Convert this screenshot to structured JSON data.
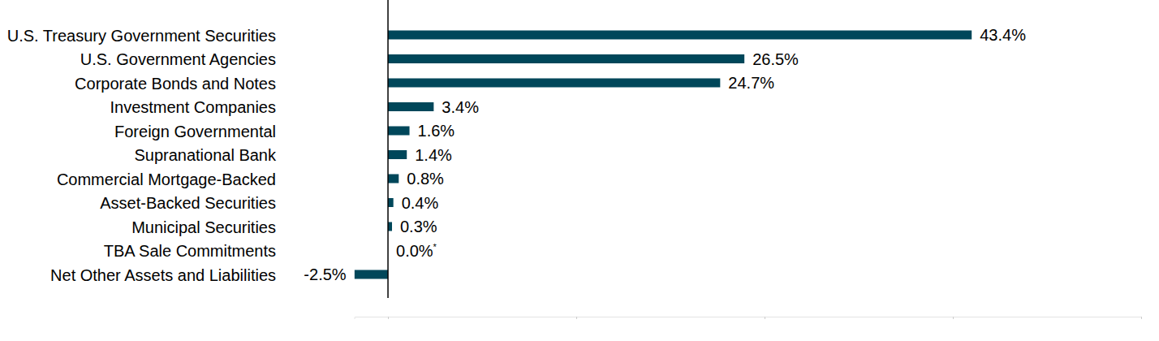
{
  "chart_data": {
    "type": "bar",
    "orientation": "horizontal",
    "categories": [
      "U.S. Treasury Government Securities",
      "U.S. Government Agencies",
      "Corporate Bonds and Notes",
      "Investment Companies",
      "Foreign Governmental",
      "Supranational Bank",
      "Commercial Mortgage-Backed",
      "Asset-Backed Securities",
      "Municipal Securities",
      "TBA Sale Commitments",
      "Net Other Assets and Liabilities"
    ],
    "values": [
      43.4,
      26.5,
      24.7,
      3.4,
      1.6,
      1.4,
      0.8,
      0.4,
      0.3,
      0.0,
      -2.5
    ],
    "value_labels": [
      "43.4%",
      "26.5%",
      "24.7%",
      "3.4%",
      "1.6%",
      "1.4%",
      "0.8%",
      "0.4%",
      "0.3%",
      "0.0%*",
      "-2.5%"
    ],
    "color": "#00475a",
    "xlim": [
      -2.5,
      56
    ],
    "xticks": [
      0,
      14,
      28,
      42,
      56
    ],
    "grid": false,
    "data_labels": true,
    "tick_labels": "y"
  }
}
